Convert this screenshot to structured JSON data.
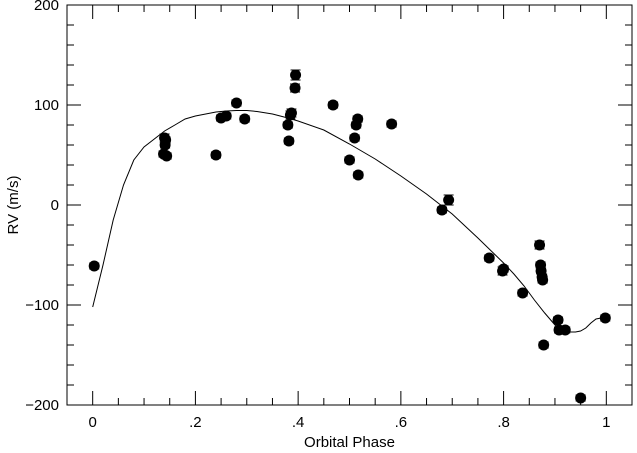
{
  "chart_data": {
    "type": "scatter",
    "title": "",
    "xlabel": "Orbital Phase",
    "ylabel": "RV (m/s)",
    "xlim": [
      -0.05,
      1.05
    ],
    "ylim": [
      -200,
      200
    ],
    "x_ticks": [
      0,
      0.2,
      0.4,
      0.6,
      0.8,
      1.0
    ],
    "x_tick_labels": [
      "0",
      ".2",
      ".4",
      ".6",
      ".8",
      "1"
    ],
    "y_ticks": [
      -200,
      -100,
      0,
      100,
      200
    ],
    "y_tick_labels": [
      "−200",
      "−100",
      "0",
      "100",
      "200"
    ],
    "grid": false,
    "legend": "none",
    "colors": {
      "points": "#000000",
      "curve": "#000000",
      "axes": "#000000"
    },
    "series": [
      {
        "kind": "points",
        "x": [
          0.003,
          0.138,
          0.14,
          0.141,
          0.142,
          0.144,
          0.24,
          0.25,
          0.26,
          0.28,
          0.296,
          0.38,
          0.382,
          0.385,
          0.387,
          0.394,
          0.395,
          0.468,
          0.5,
          0.51,
          0.513,
          0.516,
          0.517,
          0.582,
          0.68,
          0.693,
          0.772,
          0.798,
          0.8,
          0.837,
          0.87,
          0.872,
          0.873,
          0.875,
          0.876,
          0.878,
          0.906,
          0.908,
          0.92,
          0.95,
          0.998
        ],
        "y": [
          -61,
          51,
          67,
          60,
          65,
          49,
          50,
          87,
          89,
          102,
          86,
          80,
          64,
          90,
          92,
          117,
          130,
          100,
          45,
          67,
          80,
          86,
          30,
          81,
          -5,
          5,
          -53,
          -66,
          -64,
          -88,
          -40,
          -60,
          -66,
          -72,
          -75,
          -140,
          -115,
          -125,
          -125,
          -193,
          -113
        ],
        "y_err": [
          3,
          3,
          4,
          3,
          3,
          3,
          3,
          3,
          3,
          3,
          3,
          3,
          3,
          4,
          4,
          4,
          5,
          3,
          3,
          3,
          3,
          3,
          3,
          3,
          3,
          5,
          3,
          4,
          3,
          3,
          4,
          3,
          3,
          3,
          3,
          3,
          3,
          3,
          3,
          3,
          3
        ]
      },
      {
        "kind": "model-curve",
        "x": [
          0.0,
          0.02,
          0.04,
          0.06,
          0.08,
          0.1,
          0.12,
          0.14,
          0.16,
          0.18,
          0.2,
          0.22,
          0.24,
          0.26,
          0.28,
          0.3,
          0.32,
          0.35,
          0.38,
          0.4,
          0.45,
          0.5,
          0.55,
          0.6,
          0.65,
          0.7,
          0.75,
          0.8,
          0.82,
          0.84,
          0.86,
          0.88,
          0.9,
          0.91,
          0.92,
          0.93,
          0.94,
          0.95,
          0.96,
          0.97,
          0.98,
          0.99,
          1.0
        ],
        "y": [
          -102,
          -60,
          -15,
          20,
          45,
          58,
          66,
          74,
          80,
          86,
          89,
          91,
          93,
          94,
          94.5,
          94.5,
          93.5,
          91,
          87,
          84,
          75,
          61,
          46,
          29,
          11,
          -9,
          -33,
          -58,
          -69,
          -81,
          -95,
          -108,
          -120,
          -125,
          -126,
          -127,
          -127,
          -126,
          -123,
          -118,
          -114,
          -113,
          -112
        ]
      }
    ]
  }
}
